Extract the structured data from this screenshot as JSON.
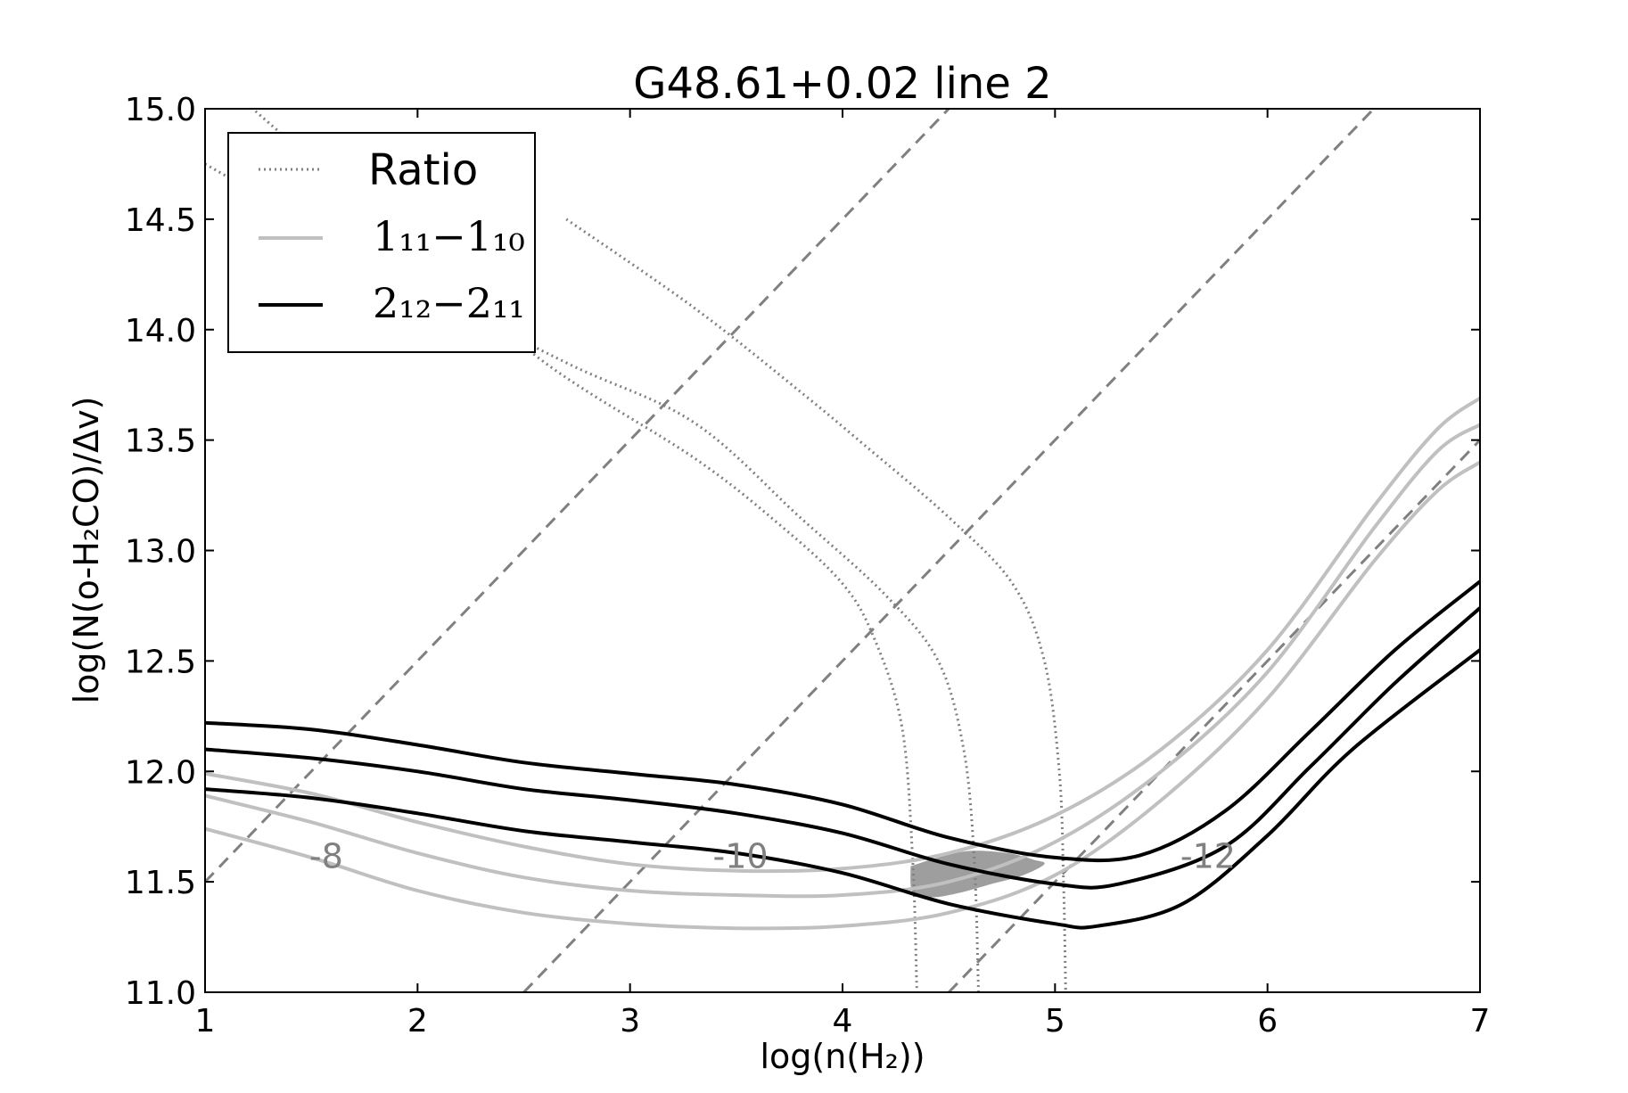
{
  "chart_data": {
    "type": "line",
    "title": "G48.61+0.02 line 2",
    "xlabel": "log(n(H₂))",
    "ylabel": "log(N(o-H₂CO)/Δv)",
    "xlim": [
      1,
      7
    ],
    "ylim": [
      11.0,
      15.0
    ],
    "x_ticks": [
      "1",
      "2",
      "3",
      "4",
      "5",
      "6",
      "7"
    ],
    "y_ticks": [
      "11.0",
      "11.5",
      "12.0",
      "12.5",
      "13.0",
      "13.5",
      "14.0",
      "14.5",
      "15.0"
    ],
    "legend_position": "upper-left",
    "legend": [
      {
        "label": "Ratio",
        "style": "dotted",
        "color": "#808080"
      },
      {
        "label": "1₁₁−1₁₀",
        "style": "solid",
        "color": "#c0c0c0"
      },
      {
        "label": "2₁₂−2₁₁",
        "style": "solid",
        "color": "#000000"
      }
    ],
    "series": [
      {
        "group": "1_11-1_10",
        "color": "#c0c0c0",
        "points": [
          [
            1,
            11.99
          ],
          [
            1.5,
            11.9
          ],
          [
            2,
            11.77
          ],
          [
            2.5,
            11.66
          ],
          [
            3,
            11.58
          ],
          [
            3.5,
            11.55
          ],
          [
            4,
            11.56
          ],
          [
            4.5,
            11.63
          ],
          [
            5,
            11.8
          ],
          [
            5.5,
            12.1
          ],
          [
            6,
            12.55
          ],
          [
            6.5,
            13.2
          ],
          [
            6.8,
            13.55
          ],
          [
            7,
            13.69
          ]
        ]
      },
      {
        "group": "1_11-1_10",
        "color": "#c0c0c0",
        "points": [
          [
            1,
            11.89
          ],
          [
            1.5,
            11.77
          ],
          [
            2,
            11.63
          ],
          [
            2.5,
            11.52
          ],
          [
            3,
            11.46
          ],
          [
            3.5,
            11.44
          ],
          [
            4,
            11.44
          ],
          [
            4.5,
            11.5
          ],
          [
            5,
            11.68
          ],
          [
            5.5,
            12.0
          ],
          [
            6,
            12.45
          ],
          [
            6.5,
            13.1
          ],
          [
            6.8,
            13.45
          ],
          [
            7,
            13.57
          ]
        ]
      },
      {
        "group": "1_11-1_10",
        "color": "#c0c0c0",
        "points": [
          [
            1,
            11.74
          ],
          [
            1.5,
            11.61
          ],
          [
            2,
            11.46
          ],
          [
            2.5,
            11.36
          ],
          [
            3,
            11.31
          ],
          [
            3.5,
            11.29
          ],
          [
            4,
            11.3
          ],
          [
            4.5,
            11.36
          ],
          [
            5,
            11.53
          ],
          [
            5.5,
            11.87
          ],
          [
            6,
            12.33
          ],
          [
            6.5,
            12.95
          ],
          [
            6.8,
            13.27
          ],
          [
            7,
            13.4
          ]
        ]
      },
      {
        "group": "2_12-2_11",
        "color": "#000000",
        "points": [
          [
            1,
            12.22
          ],
          [
            1.5,
            12.19
          ],
          [
            2,
            12.12
          ],
          [
            2.5,
            12.04
          ],
          [
            3,
            11.99
          ],
          [
            3.5,
            11.94
          ],
          [
            4,
            11.85
          ],
          [
            4.5,
            11.7
          ],
          [
            5,
            11.61
          ],
          [
            5.4,
            11.62
          ],
          [
            5.8,
            11.82
          ],
          [
            6.2,
            12.18
          ],
          [
            6.6,
            12.55
          ],
          [
            7,
            12.86
          ]
        ]
      },
      {
        "group": "2_12-2_11",
        "color": "#000000",
        "points": [
          [
            1,
            12.1
          ],
          [
            1.5,
            12.06
          ],
          [
            2,
            12.0
          ],
          [
            2.5,
            11.92
          ],
          [
            3,
            11.87
          ],
          [
            3.5,
            11.81
          ],
          [
            4,
            11.72
          ],
          [
            4.5,
            11.58
          ],
          [
            5,
            11.49
          ],
          [
            5.3,
            11.49
          ],
          [
            5.8,
            11.66
          ],
          [
            6.2,
            12.02
          ],
          [
            6.6,
            12.4
          ],
          [
            7,
            12.74
          ]
        ]
      },
      {
        "group": "2_12-2_11",
        "color": "#000000",
        "points": [
          [
            1,
            11.92
          ],
          [
            1.5,
            11.88
          ],
          [
            2,
            11.81
          ],
          [
            2.5,
            11.73
          ],
          [
            3,
            11.68
          ],
          [
            3.5,
            11.63
          ],
          [
            4,
            11.54
          ],
          [
            4.5,
            11.4
          ],
          [
            5,
            11.31
          ],
          [
            5.2,
            11.3
          ],
          [
            5.6,
            11.4
          ],
          [
            6.0,
            11.71
          ],
          [
            6.4,
            12.1
          ],
          [
            7,
            12.55
          ]
        ]
      },
      {
        "group": "Ratio",
        "color": "#808080",
        "points": [
          [
            1.2,
            15.02
          ],
          [
            2,
            14.35
          ],
          [
            2.6,
            13.85
          ],
          [
            3.3,
            13.42
          ],
          [
            3.7,
            13.12
          ],
          [
            4.0,
            12.85
          ],
          [
            4.15,
            12.6
          ],
          [
            4.28,
            12.2
          ],
          [
            4.33,
            11.6
          ],
          [
            4.35,
            11.0
          ]
        ]
      },
      {
        "group": "Ratio",
        "color": "#808080",
        "points": [
          [
            1,
            14.75
          ],
          [
            2,
            14.2
          ],
          [
            2.7,
            13.85
          ],
          [
            3.3,
            13.58
          ],
          [
            3.8,
            13.15
          ],
          [
            4.2,
            12.8
          ],
          [
            4.45,
            12.5
          ],
          [
            4.57,
            12.1
          ],
          [
            4.62,
            11.6
          ],
          [
            4.64,
            11.0
          ]
        ]
      },
      {
        "group": "Ratio",
        "color": "#808080",
        "points": [
          [
            2.7,
            14.5
          ],
          [
            3.3,
            14.1
          ],
          [
            3.8,
            13.72
          ],
          [
            4.1,
            13.48
          ],
          [
            4.5,
            13.15
          ],
          [
            4.8,
            12.85
          ],
          [
            4.95,
            12.5
          ],
          [
            5.02,
            12.0
          ],
          [
            5.04,
            11.5
          ],
          [
            5.05,
            11.0
          ]
        ]
      },
      {
        "group": "X-ratio",
        "color": "#808080",
        "points": [
          [
            1,
            11.5
          ],
          [
            4.5,
            15.0
          ]
        ]
      },
      {
        "group": "X-ratio",
        "color": "#808080",
        "points": [
          [
            2.5,
            11.0
          ],
          [
            6.5,
            15.0
          ]
        ]
      },
      {
        "group": "X-ratio",
        "color": "#808080",
        "points": [
          [
            4.5,
            11.0
          ],
          [
            7,
            13.5
          ]
        ]
      }
    ],
    "shaded_region": {
      "color": "#999999",
      "points": [
        [
          4.32,
          11.57
        ],
        [
          4.45,
          11.61
        ],
        [
          4.6,
          11.64
        ],
        [
          4.78,
          11.63
        ],
        [
          4.9,
          11.6
        ],
        [
          4.95,
          11.58
        ],
        [
          4.85,
          11.53
        ],
        [
          4.7,
          11.49
        ],
        [
          4.55,
          11.45
        ],
        [
          4.42,
          11.43
        ],
        [
          4.33,
          11.45
        ]
      ]
    },
    "annotations": [
      {
        "text": "-8",
        "x": 1.57,
        "y": 11.62
      },
      {
        "text": "-10",
        "x": 3.52,
        "y": 11.62
      },
      {
        "text": "-12",
        "x": 5.72,
        "y": 11.62
      }
    ]
  }
}
